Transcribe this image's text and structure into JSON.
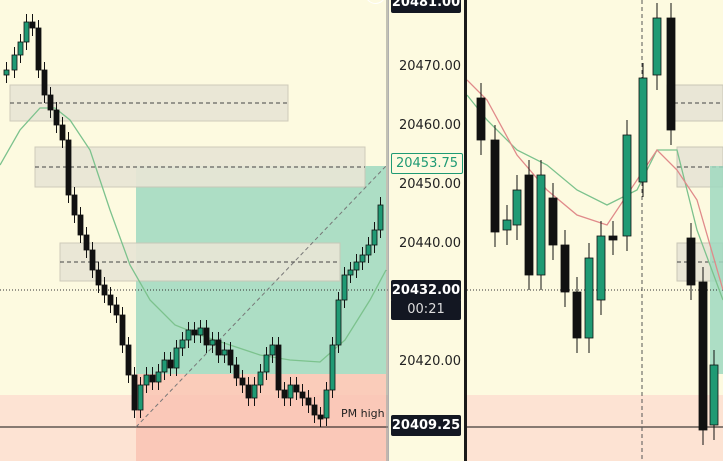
{
  "axis": {
    "ticks": [
      "20470.00",
      "20460.00",
      "20450.00",
      "20440.00",
      "20420.00"
    ],
    "top_price": "20481.00",
    "current_price": "20432.00",
    "countdown": "00:21",
    "target_price": "20453.75",
    "pm_high_price": "20409.25"
  },
  "chart": {
    "pm_high_label": "PM high",
    "plus_symbol": "+"
  },
  "colors": {
    "background": "#fdfae0",
    "bull_candle": "#1f9a74",
    "bear_candle": "#111111",
    "profit_zone": "#9fd8c0",
    "loss_zone": "#f9c3b3",
    "ma_green": "#7cc28d",
    "ma_red": "#e08a8a"
  }
}
